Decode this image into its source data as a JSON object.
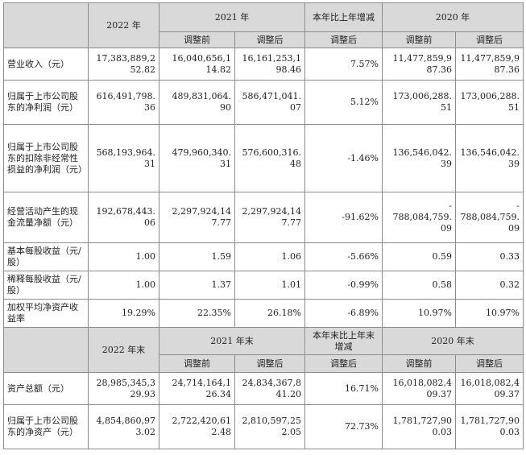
{
  "section1": {
    "header": {
      "col_2022": "2022 年",
      "col_2021": "2021 年",
      "col_change": "本年比上年增减",
      "col_2020": "2020 年",
      "sub_before": "调整前",
      "sub_after": "调整后",
      "sub_change_after": "调整后"
    },
    "rows": [
      {
        "label": "营业收入（元）",
        "v2022": "17,383,889,2\n52.82",
        "v2021_before": "16,040,656,1\n14.82",
        "v2021_after": "16,161,253,1\n98.46",
        "change": "7.57%",
        "v2020_before": "11,477,859,9\n87.36",
        "v2020_after": "11,477,859,9\n87.36"
      },
      {
        "label": "归属于上市公司股东的净利润（元）",
        "v2022": "616,491,798.\n36",
        "v2021_before": "489,831,064.\n90",
        "v2021_after": "586,471,041.\n07",
        "change": "5.12%",
        "v2020_before": "173,006,288.\n51",
        "v2020_after": "173,006,288.\n51"
      },
      {
        "label": "归属于上市公司股东的扣除非经常性损益的净利润（元）",
        "v2022": "568,193,964.\n31",
        "v2021_before": "479,960,340.\n31",
        "v2021_after": "576,600,316.\n48",
        "change": "-1.46%",
        "v2020_before": "136,546,042.\n39",
        "v2020_after": "136,546,042.\n39"
      },
      {
        "label": "经营活动产生的现金流量净额（元）",
        "v2022": "192,678,443.\n06",
        "v2021_before": "2,297,924,14\n7.77",
        "v2021_after": "2,297,924,14\n7.77",
        "change": "-91.62%",
        "v2020_before": "-\n788,084,759.\n09",
        "v2020_after": "-\n788,084,759.\n09"
      },
      {
        "label": "基本每股收益（元/股）",
        "v2022": "1.00",
        "v2021_before": "1.59",
        "v2021_after": "1.06",
        "change": "-5.66%",
        "v2020_before": "0.59",
        "v2020_after": "0.33"
      },
      {
        "label": "稀释每股收益（元/股）",
        "v2022": "1.00",
        "v2021_before": "1.37",
        "v2021_after": "1.01",
        "change": "-0.99%",
        "v2020_before": "0.58",
        "v2020_after": "0.32"
      },
      {
        "label": "加权平均净资产收益率",
        "v2022": "19.29%",
        "v2021_before": "22.35%",
        "v2021_after": "26.18%",
        "change": "-6.89%",
        "v2020_before": "10.97%",
        "v2020_after": "10.97%"
      }
    ]
  },
  "section2": {
    "header": {
      "col_2022": "2022 年末",
      "col_2021": "2021 年末",
      "col_change": "本年末比上年末增减",
      "col_2020": "2020 年末",
      "sub_before": "调整前",
      "sub_after": "调整后",
      "sub_change_after": "调整后"
    },
    "rows": [
      {
        "label": "资产总额（元）",
        "v2022": "28,985,345,3\n29.93",
        "v2021_before": "24,714,164,1\n26.34",
        "v2021_after": "24,834,367,8\n41.20",
        "change": "16.71%",
        "v2020_before": "16,018,082,4\n09.37",
        "v2020_after": "16,018,082,4\n09.37"
      },
      {
        "label": "归属于上市公司股东的净资产（元）",
        "v2022": "4,854,860,97\n3.02",
        "v2021_before": "2,722,420,61\n2.48",
        "v2021_after": "2,810,597,25\n2.05",
        "change": "72.73%",
        "v2020_before": "1,781,727,90\n0.03",
        "v2020_after": "1,781,727,90\n0.03"
      }
    ]
  }
}
